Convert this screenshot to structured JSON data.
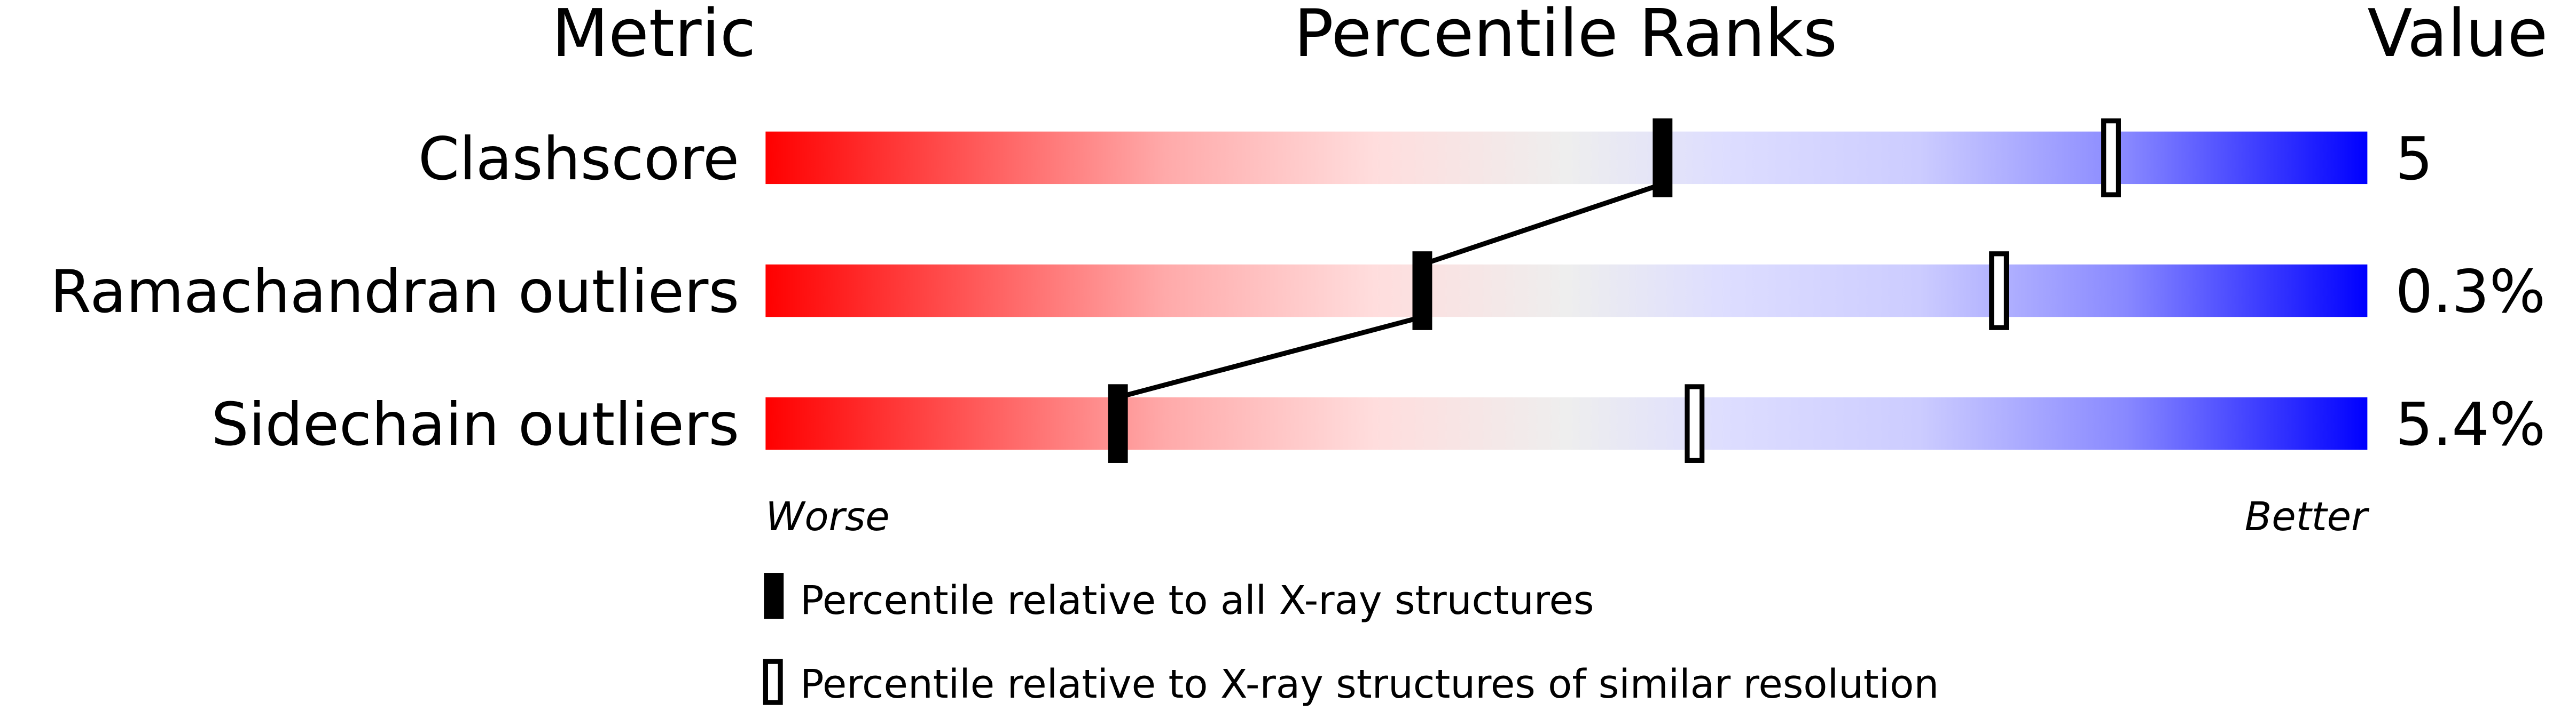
{
  "headers": {
    "metric": "Metric",
    "percentile_ranks": "Percentile Ranks",
    "value": "Value"
  },
  "axis": {
    "worse": "Worse",
    "better": "Better"
  },
  "legend": {
    "all": "Percentile relative to all X-ray structures",
    "similar": "Percentile relative to X-ray structures of similar resolution"
  },
  "colors": {
    "worse": "#ff0000",
    "middle": "#eeeeee",
    "better": "#0000ff",
    "marker": "#000000"
  },
  "chart_data": {
    "type": "percentile-slider",
    "xlim": [
      0,
      100
    ],
    "metrics": [
      {
        "name": "Clashscore",
        "value": "5",
        "percentile_all": 56,
        "percentile_similar": 84
      },
      {
        "name": "Ramachandran outliers",
        "value": "0.3%",
        "percentile_all": 41,
        "percentile_similar": 77
      },
      {
        "name": "Sidechain outliers",
        "value": "5.4%",
        "percentile_all": 22,
        "percentile_similar": 58
      }
    ]
  }
}
